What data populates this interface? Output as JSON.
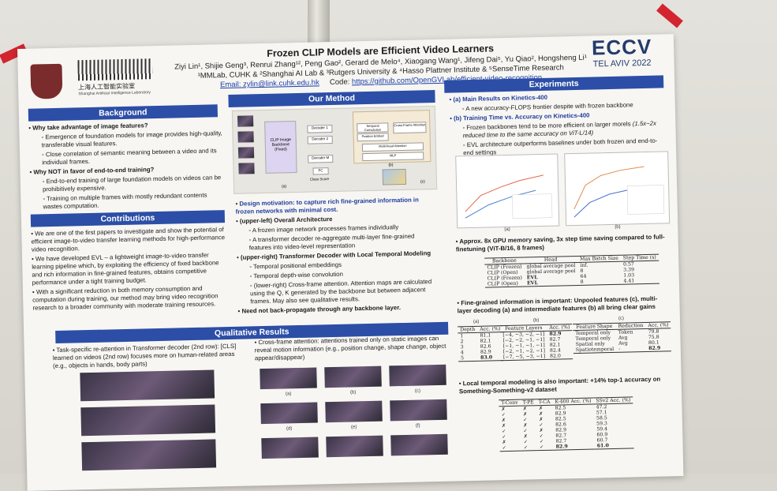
{
  "poster": {
    "title": "Frozen CLIP Models are Efficient Video Learners",
    "authors_line1": "Ziyi Lin¹, Shijie Geng³, Renrui Zhang¹², Peng Gao², Gerard de Melo⁴, Xiaogang Wang¹, Jifeng Dai⁵, Yu Qiao², Hongsheng Li¹",
    "authors_line2": "¹MMLab, CUHK & ²Shanghai AI Lab & ³Rutgers University & ⁴Hasso Plattner Institute & ⁵SenseTime Research",
    "email": "Email: zylin@link.cuhk.edu.hk",
    "code_label": "Code:",
    "code_url": "https://github.com/OpenGVLab/efficient-video-recognition",
    "lab_cn": "上海人工智能实验室",
    "lab_en": "Shanghai Artificial Intelligence Laboratory",
    "eccv": "ECCV",
    "eccv_sub": "TEL AVIV 2022"
  },
  "background": {
    "header": "Background",
    "q1": "Why take advantage of image features?",
    "q1_b1": "Emergence of foundation models for image provides high-quality, transferable visual features.",
    "q1_b2": "Close correlation of semantic meaning between a video and its individual frames.",
    "q2": "Why NOT in favor of end-to-end training?",
    "q2_b1": "End-to-end training of large foundation models on videos can be prohibitively expensive.",
    "q2_b2": "Training on multiple frames with mostly redundant contents wastes computation."
  },
  "contributions": {
    "header": "Contributions",
    "b1": "We are one of the first papers to investigate and show the potential of efficient image-to-video transfer learning methods for high-performance video recognition.",
    "b2": "We have developed EVL – a lightweight image-to-video transfer learning pipeline which, by exploiting the efficiency of fixed backbone and rich information in fine-grained features, obtains competitive performance under a tight training budget.",
    "b3": "With a significant reduction in both memory consumption and computation during training, our method may bring video recognition research to a broader community with moderate training resources."
  },
  "method": {
    "header": "Our Method",
    "motivation": "Design motivation: to capture rich fine-grained information in frozen networks with minimal cost.",
    "arch_title": "(upper-left) Overall Architecture",
    "arch_b1": "A frozen image network processes frames individually",
    "arch_b2": "A transformer decoder re-aggregate multi-layer fine-grained features into video-level representation",
    "dec_title": "(upper-right) Transformer Decoder with Local Temporal Modeling",
    "dec_b1": "Temporal positional embeddings",
    "dec_b2": "Temporal depth-wise convolution",
    "dec_b3": "(lower-right) Cross-frame attention. Attention maps are calculated using the Q, K generated by the backbone but between adjacent frames. May also see qualitative results.",
    "no_backprop": "Need not back-propagate through any backbone layer.",
    "fig_backbone": "CLIP Image Backbone (Fixed)",
    "fig_decoder1": "Decoder 1",
    "fig_decoder2": "Decoder 2",
    "fig_decoderM": "Decoder M",
    "fig_fc": "FC",
    "fig_class": "Class Score",
    "fig_tempconv": "Temporal Convolution",
    "fig_posembed": "Position Embed",
    "fig_crossframe": "Cross-Frame Attention",
    "fig_mha": "Multi-head Attention",
    "fig_mlp": "MLP",
    "fig_a": "(a)",
    "fig_b": "(b)",
    "fig_c": "(c)"
  },
  "experiments": {
    "header": "Experiments",
    "a_title": "(a) Main Results on Kinetics-400",
    "a_b1": "A new accuracy-FLOPS frontier despite with frozen backbone",
    "b_title": "(b) Training Time vs. Accuracy on Kinetics-400",
    "b_b1": "Frozen backbones tend to be more efficient on larger morels",
    "b_b1_note": "(1.5x~2x reduced time to the same accuracy on ViT-L/14)",
    "b_b2": "EVL architecture outperforms baselines under both frozen and end-to-end settings",
    "plot_a_label": "(a)",
    "plot_b_label": "(b)",
    "gpu_note": "Approx. 8x GPU memory saving, 3x step time saving compared to full-finetuning (ViT-B/16, 8 frames)",
    "mem_headers": [
      "Backbone",
      "Head",
      "Max Batch Size",
      "Step Time (s)"
    ],
    "mem_rows": [
      [
        "CLIP (Frozen)",
        "global average pool",
        "inf.",
        "0.57"
      ],
      [
        "CLIP (Open)",
        "global average pool",
        "8",
        "3.39"
      ],
      [
        "CLIP (Frozen)",
        "EVL",
        "64",
        "1.03"
      ],
      [
        "CLIP (Open)",
        "EVL",
        "8",
        "4.41"
      ]
    ],
    "fine_note": "Fine-grained information is important: Unpooled features (c), multi-layer decoding (a) and intermediate features (b) all bring clear gains",
    "tbl_a_label": "(a)",
    "tbl_a_headers": [
      "Depth",
      "Acc. (%)"
    ],
    "tbl_a_rows": [
      [
        "1",
        "81.1"
      ],
      [
        "2",
        "82.1"
      ],
      [
        "3",
        "82.6"
      ],
      [
        "4",
        "82.9"
      ],
      [
        "5",
        "83.0"
      ]
    ],
    "tbl_b_label": "(b)",
    "tbl_b_headers": [
      "Feature Layers",
      "Acc. (%)"
    ],
    "tbl_b_rows": [
      [
        "[−4, −3, −2, −1]",
        "82.9"
      ],
      [
        "[−2, −2, −1, −1]",
        "82.7"
      ],
      [
        "[−1, −1, −1, −1]",
        "82.1"
      ],
      [
        "[−2, −1, −2, −1]",
        "82.4"
      ],
      [
        "[−7, −5, −3, −1]",
        "82.0"
      ]
    ],
    "tbl_c_label": "(c)",
    "tbl_c_headers": [
      "Feature Shape",
      "Reduction",
      "Acc. (%)"
    ],
    "tbl_c_rows": [
      [
        "Temporal only",
        "Token",
        "79.8"
      ],
      [
        "Temporal only",
        "Avg",
        "75.8"
      ],
      [
        "Spatial only",
        "Avg",
        "80.1"
      ],
      [
        "Spatiotemporal",
        "-",
        "82.9"
      ]
    ],
    "local_note": "Local temporal modeling is also important: +14% top-1 accuracy on Something-Something-v2 dataset",
    "tbl_d_headers": [
      "T-Conv",
      "T-PE",
      "T-CA",
      "K-400 Acc. (%)",
      "SSv2 Acc. (%)"
    ],
    "tbl_d_rows": [
      [
        "✗",
        "✗",
        "✗",
        "82.5",
        "47.2"
      ],
      [
        "✓",
        "✗",
        "✗",
        "82.9",
        "57.1"
      ],
      [
        "✗",
        "✓",
        "✗",
        "82.5",
        "58.5"
      ],
      [
        "✗",
        "✗",
        "✓",
        "82.6",
        "59.3"
      ],
      [
        "✓",
        "✓",
        "✗",
        "82.9",
        "59.4"
      ],
      [
        "✓",
        "✗",
        "✓",
        "82.7",
        "60.9"
      ],
      [
        "✗",
        "✓",
        "✓",
        "82.7",
        "60.7"
      ],
      [
        "✓",
        "✓",
        "✓",
        "82.9",
        "61.0"
      ]
    ]
  },
  "qualitative": {
    "header": "Qualitative Results",
    "left_text": "Task-specific re-attention in Transformer decoder (2nd row): [CLS] learned on videos (2nd row) focuses more on human-related areas (e.g., objects in hands, body parts)",
    "right_text": "Cross-frame attention: attentions trained only on static images can reveal motion information (e.g., position change, shape change, object appear/disappear)",
    "labels": [
      "(a)",
      "(b)",
      "(c)",
      "(d)",
      "(e)",
      "(f)"
    ]
  }
}
